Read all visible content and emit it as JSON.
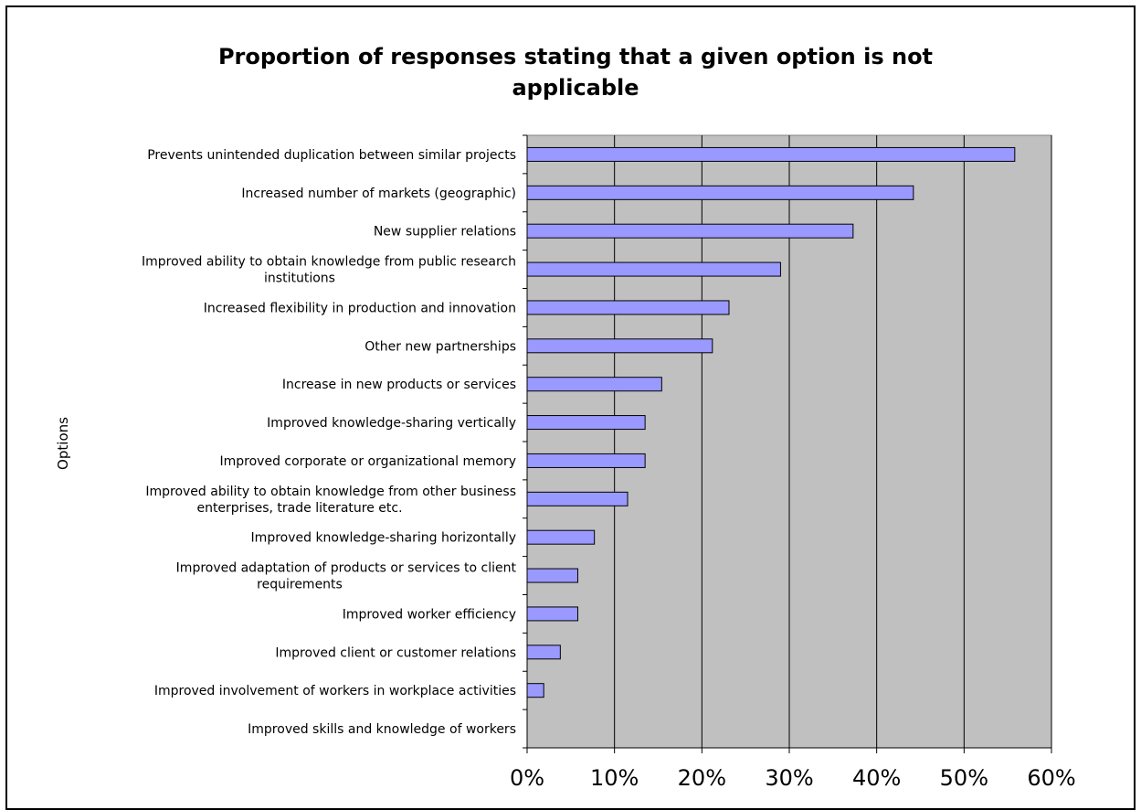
{
  "chart_data": {
    "type": "bar",
    "orientation": "horizontal",
    "title": "Proportion of responses stating that a given option is not applicable",
    "title_lines": [
      "Proportion of responses stating that a given option is not",
      "applicable"
    ],
    "ylabel": "Options",
    "xlabel": "",
    "xlim": [
      0,
      0.6
    ],
    "x_tick_labels": [
      "0%",
      "10%",
      "20%",
      "30%",
      "40%",
      "50%",
      "60%"
    ],
    "grid": "vertical",
    "legend": "none",
    "colors": {
      "bar_fill": "#9999ff",
      "bar_stroke": "#000000",
      "plot_background": "#c0c0c0"
    },
    "categories": [
      "Prevents unintended duplication between similar projects",
      "Increased number of markets (geographic)",
      "New supplier relations",
      "Improved ability to obtain knowledge from public research institutions",
      "Increased flexibility in production and innovation",
      "Other new partnerships",
      "Increase in new products or services",
      "Improved knowledge-sharing vertically",
      "Improved corporate or organizational memory",
      "Improved ability to obtain knowledge from other business enterprises, trade literature etc.",
      "Improved knowledge-sharing horizontally",
      "Improved adaptation of products or services to client requirements",
      "Improved worker efficiency",
      "Improved client or customer relations",
      "Improved involvement of workers in workplace activities",
      "Improved skills and knowledge of workers"
    ],
    "category_lines": [
      [
        "Prevents unintended duplication between similar projects"
      ],
      [
        "Increased number of markets (geographic)"
      ],
      [
        "New supplier relations"
      ],
      [
        "Improved ability to obtain knowledge from public research",
        "institutions"
      ],
      [
        "Increased flexibility in production and innovation"
      ],
      [
        "Other new partnerships"
      ],
      [
        "Increase in new products or services"
      ],
      [
        "Improved knowledge-sharing vertically"
      ],
      [
        "Improved corporate or organizational memory"
      ],
      [
        "Improved ability to obtain knowledge from other business",
        "enterprises, trade literature etc."
      ],
      [
        "Improved knowledge-sharing horizontally"
      ],
      [
        "Improved adaptation of products or services to client",
        "requirements"
      ],
      [
        "Improved worker efficiency"
      ],
      [
        "Improved client or customer relations"
      ],
      [
        "Improved involvement of workers in workplace activities"
      ],
      [
        "Improved skills and knowledge of workers"
      ]
    ],
    "values": [
      0.558,
      0.442,
      0.373,
      0.29,
      0.231,
      0.212,
      0.154,
      0.135,
      0.135,
      0.115,
      0.077,
      0.058,
      0.058,
      0.038,
      0.019,
      0.0
    ]
  }
}
